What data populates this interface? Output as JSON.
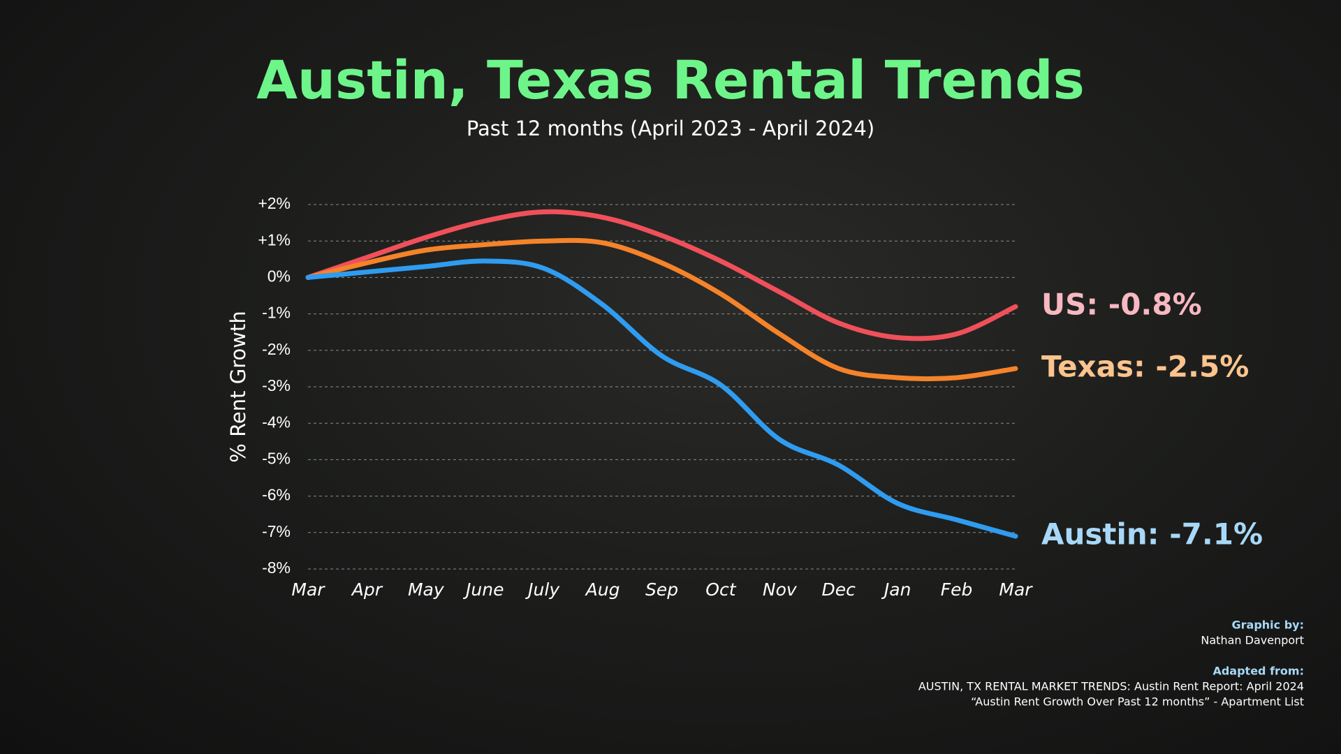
{
  "chart_data": {
    "type": "line",
    "title": "Austin, Texas Rental Trends",
    "subtitle": "Past 12 months (April 2023 - April 2024)",
    "y_label": "% Rent Growth",
    "categories": [
      "Mar",
      "Apr",
      "May",
      "June",
      "July",
      "Aug",
      "Sep",
      "Oct",
      "Nov",
      "Dec",
      "Jan",
      "Feb",
      "Mar"
    ],
    "series": [
      {
        "name": "US: -0.8%",
        "color": "#f0505a",
        "label_color": "#f7b8c1",
        "values": [
          0,
          0.55,
          1.1,
          1.55,
          1.8,
          1.65,
          1.15,
          0.45,
          -0.4,
          -1.25,
          -1.65,
          -1.55,
          -0.8
        ]
      },
      {
        "name": "Texas: -2.5%",
        "color": "#f5832a",
        "label_color": "#fbc48e",
        "values": [
          0,
          0.4,
          0.75,
          0.9,
          1.0,
          0.95,
          0.4,
          -0.45,
          -1.55,
          -2.5,
          -2.75,
          -2.75,
          -2.5
        ]
      },
      {
        "name": "Austin: -7.1%",
        "color": "#2f9cf0",
        "label_color": "#a8d8f7",
        "values": [
          0,
          0.15,
          0.3,
          0.45,
          0.25,
          -0.75,
          -2.15,
          -2.95,
          -4.45,
          -5.15,
          -6.2,
          -6.65,
          -7.1
        ]
      }
    ],
    "ylim": [
      -8,
      2
    ],
    "yticks": [
      {
        "value": 2,
        "label": "+2%"
      },
      {
        "value": 1,
        "label": "+1%"
      },
      {
        "value": 0,
        "label": "0%"
      },
      {
        "value": -1,
        "label": "-1%"
      },
      {
        "value": -2,
        "label": "-2%"
      },
      {
        "value": -3,
        "label": "-3%"
      },
      {
        "value": -4,
        "label": "-4%"
      },
      {
        "value": -5,
        "label": "-5%"
      },
      {
        "value": -6,
        "label": "-6%"
      },
      {
        "value": -7,
        "label": "-7%"
      },
      {
        "value": -8,
        "label": "-8%"
      }
    ],
    "grid": true
  },
  "credits": {
    "graphic_heading": "Graphic by:",
    "graphic_author": "Nathan Davenport",
    "source_heading": "Adapted from:",
    "source_lines": [
      "AUSTIN, TX RENTAL MARKET TRENDS: Austin Rent Report: April 2024",
      "“Austin Rent Growth Over Past 12 months” - Apartment List"
    ]
  }
}
